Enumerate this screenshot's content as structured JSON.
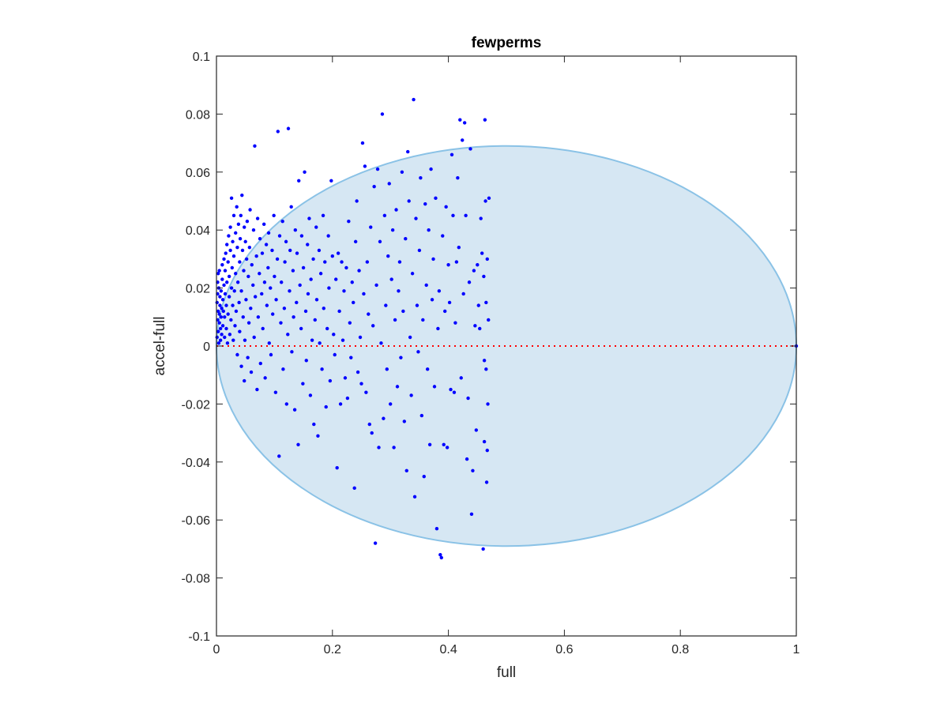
{
  "chart_data": {
    "type": "scatter",
    "title": "fewperms",
    "xlabel": "full",
    "ylabel": "accel-full",
    "xlim": [
      0,
      1
    ],
    "ylim": [
      -0.1,
      0.1
    ],
    "xticks": [
      0,
      0.2,
      0.4,
      0.6,
      0.8,
      1
    ],
    "xtick_labels": [
      "0",
      "0.2",
      "0.4",
      "0.6",
      "0.8",
      "1"
    ],
    "yticks": [
      -0.1,
      -0.08,
      -0.06,
      -0.04,
      -0.02,
      0,
      0.02,
      0.04,
      0.06,
      0.08,
      0.1
    ],
    "ytick_labels": [
      "-0.1",
      "-0.08",
      "-0.06",
      "-0.04",
      "-0.02",
      "0",
      "0.02",
      "0.04",
      "0.06",
      "0.08",
      "0.1"
    ],
    "grid": false,
    "reference_line": {
      "y": 0,
      "style": "dotted",
      "color": "#ff0000"
    },
    "region": {
      "shape": "ellipse",
      "passes_through": [
        [
          0,
          0
        ],
        [
          1,
          0
        ]
      ],
      "center": [
        0.5,
        0
      ],
      "x_semi_axis": 0.5,
      "y_semi_axis": 0.069,
      "fill": "#d6e7f3",
      "stroke": "#8ac2e6"
    },
    "marker_color": "#0000ff",
    "points": [
      [
        0.001,
        0.003
      ],
      [
        0.002,
        0.009
      ],
      [
        0.003,
        0.012
      ],
      [
        0.001,
        0.015
      ],
      [
        0.002,
        0.018
      ],
      [
        0.003,
        0.005
      ],
      [
        0.004,
        0.02
      ],
      [
        0.002,
        0.022
      ],
      [
        0.003,
        0.025
      ],
      [
        0.004,
        0.001
      ],
      [
        0.005,
        0.008
      ],
      [
        0.005,
        0.011
      ],
      [
        0.006,
        0.014
      ],
      [
        0.007,
        0.002
      ],
      [
        0.006,
        0.017
      ],
      [
        0.005,
        0.026
      ],
      [
        0.007,
        0.006
      ],
      [
        0.008,
        0.01
      ],
      [
        0.008,
        0.019
      ],
      [
        0.009,
        0.013
      ],
      [
        0.009,
        0.004
      ],
      [
        0.01,
        0.023
      ],
      [
        0.01,
        0.028
      ],
      [
        0.011,
        0.007
      ],
      [
        0.011,
        0.016
      ],
      [
        0.012,
        0.012
      ],
      [
        0.013,
        0.021
      ],
      [
        0.013,
        0.03
      ],
      [
        0.014,
        0.003
      ],
      [
        0.014,
        0.01
      ],
      [
        0.015,
        0.018
      ],
      [
        0.015,
        0.026
      ],
      [
        0.016,
        0.032
      ],
      [
        0.017,
        0.006
      ],
      [
        0.017,
        0.014
      ],
      [
        0.018,
        0.035
      ],
      [
        0.018,
        0.022
      ],
      [
        0.019,
        0.001
      ],
      [
        0.02,
        0.029
      ],
      [
        0.02,
        0.011
      ],
      [
        0.021,
        0.038
      ],
      [
        0.022,
        0.017
      ],
      [
        0.022,
        0.024
      ],
      [
        0.023,
        0.004
      ],
      [
        0.024,
        0.033
      ],
      [
        0.024,
        0.041
      ],
      [
        0.025,
        0.009
      ],
      [
        0.026,
        0.02
      ],
      [
        0.026,
        0.051
      ],
      [
        0.027,
        0.027
      ],
      [
        0.028,
        0.014
      ],
      [
        0.028,
        0.036
      ],
      [
        0.029,
        0.002
      ],
      [
        0.03,
        0.045
      ],
      [
        0.03,
        0.031
      ],
      [
        0.031,
        0.019
      ],
      [
        0.032,
        0.007
      ],
      [
        0.033,
        0.039
      ],
      [
        0.033,
        0.025
      ],
      [
        0.034,
        0.012
      ],
      [
        0.035,
        0.048
      ],
      [
        0.036,
        0.034
      ],
      [
        0.036,
        -0.003
      ],
      [
        0.037,
        0.022
      ],
      [
        0.038,
        0.042
      ],
      [
        0.039,
        0.015
      ],
      [
        0.04,
        0.029
      ],
      [
        0.04,
        0.005
      ],
      [
        0.041,
        0.037
      ],
      [
        0.042,
        0.045
      ],
      [
        0.043,
        -0.007
      ],
      [
        0.043,
        0.019
      ],
      [
        0.044,
        0.052
      ],
      [
        0.045,
        0.033
      ],
      [
        0.046,
        0.01
      ],
      [
        0.047,
        0.026
      ],
      [
        0.048,
        0.041
      ],
      [
        0.048,
        -0.012
      ],
      [
        0.049,
        0.002
      ],
      [
        0.05,
        0.036
      ],
      [
        0.051,
        0.016
      ],
      [
        0.052,
        0.03
      ],
      [
        0.053,
        0.043
      ],
      [
        0.054,
        -0.004
      ],
      [
        0.055,
        0.024
      ],
      [
        0.056,
        0.008
      ],
      [
        0.057,
        0.034
      ],
      [
        0.058,
        0.047
      ],
      [
        0.059,
        0.013
      ],
      [
        0.06,
        -0.009
      ],
      [
        0.061,
        0.028
      ],
      [
        0.063,
        0.021
      ],
      [
        0.064,
        0.04
      ],
      [
        0.065,
        0.003
      ],
      [
        0.066,
        0.069
      ],
      [
        0.067,
        0.017
      ],
      [
        0.069,
        0.031
      ],
      [
        0.07,
        -0.015
      ],
      [
        0.071,
        0.044
      ],
      [
        0.072,
        0.01
      ],
      [
        0.074,
        0.025
      ],
      [
        0.075,
        0.037
      ],
      [
        0.076,
        -0.006
      ],
      [
        0.078,
        0.018
      ],
      [
        0.079,
        0.032
      ],
      [
        0.08,
        0.006
      ],
      [
        0.082,
        0.042
      ],
      [
        0.083,
        0.022
      ],
      [
        0.084,
        -0.011
      ],
      [
        0.086,
        0.035
      ],
      [
        0.087,
        0.014
      ],
      [
        0.089,
        0.027
      ],
      [
        0.09,
        0.039
      ],
      [
        0.091,
        0.001
      ],
      [
        0.093,
        0.02
      ],
      [
        0.094,
        -0.003
      ],
      [
        0.096,
        0.033
      ],
      [
        0.097,
        0.011
      ],
      [
        0.099,
        0.045
      ],
      [
        0.1,
        0.024
      ],
      [
        0.102,
        -0.016
      ],
      [
        0.103,
        0.016
      ],
      [
        0.105,
        0.03
      ],
      [
        0.106,
        0.074
      ],
      [
        0.108,
        -0.038
      ],
      [
        0.109,
        0.038
      ],
      [
        0.111,
        0.008
      ],
      [
        0.112,
        0.022
      ],
      [
        0.114,
        0.043
      ],
      [
        0.115,
        -0.008
      ],
      [
        0.117,
        0.013
      ],
      [
        0.118,
        0.029
      ],
      [
        0.12,
        0.036
      ],
      [
        0.121,
        -0.02
      ],
      [
        0.123,
        0.004
      ],
      [
        0.124,
        0.075
      ],
      [
        0.126,
        0.019
      ],
      [
        0.127,
        0.033
      ],
      [
        0.129,
        0.048
      ],
      [
        0.13,
        -0.002
      ],
      [
        0.132,
        0.026
      ],
      [
        0.133,
        0.01
      ],
      [
        0.135,
        -0.022
      ],
      [
        0.136,
        0.04
      ],
      [
        0.138,
        0.015
      ],
      [
        0.139,
        0.032
      ],
      [
        0.141,
        -0.034
      ],
      [
        0.142,
        0.057
      ],
      [
        0.144,
        0.021
      ],
      [
        0.146,
        0.006
      ],
      [
        0.147,
        0.038
      ],
      [
        0.149,
        -0.013
      ],
      [
        0.15,
        0.027
      ],
      [
        0.152,
        0.06
      ],
      [
        0.154,
        0.012
      ],
      [
        0.155,
        -0.005
      ],
      [
        0.157,
        0.035
      ],
      [
        0.158,
        0.018
      ],
      [
        0.16,
        0.044
      ],
      [
        0.162,
        -0.017
      ],
      [
        0.163,
        0.023
      ],
      [
        0.165,
        0.002
      ],
      [
        0.167,
        0.03
      ],
      [
        0.168,
        -0.027
      ],
      [
        0.17,
        0.009
      ],
      [
        0.172,
        0.041
      ],
      [
        0.173,
        0.016
      ],
      [
        0.175,
        -0.031
      ],
      [
        0.177,
        0.033
      ],
      [
        0.178,
        0.001
      ],
      [
        0.18,
        0.025
      ],
      [
        0.182,
        -0.008
      ],
      [
        0.184,
        0.045
      ],
      [
        0.185,
        0.013
      ],
      [
        0.187,
        0.029
      ],
      [
        0.189,
        -0.021
      ],
      [
        0.191,
        0.006
      ],
      [
        0.193,
        0.038
      ],
      [
        0.194,
        0.02
      ],
      [
        0.196,
        -0.012
      ],
      [
        0.198,
        0.057
      ],
      [
        0.2,
        0.031
      ],
      [
        0.202,
        0.004
      ],
      [
        0.204,
        -0.003
      ],
      [
        0.206,
        0.023
      ],
      [
        0.208,
        -0.042
      ],
      [
        0.21,
        0.032
      ],
      [
        0.212,
        0.012
      ],
      [
        0.214,
        -0.02
      ],
      [
        0.216,
        0.029
      ],
      [
        0.218,
        0.002
      ],
      [
        0.22,
        0.019
      ],
      [
        0.222,
        -0.011
      ],
      [
        0.224,
        0.027
      ],
      [
        0.226,
        -0.018
      ],
      [
        0.228,
        0.043
      ],
      [
        0.23,
        0.008
      ],
      [
        0.232,
        -0.004
      ],
      [
        0.234,
        0.022
      ],
      [
        0.236,
        0.015
      ],
      [
        0.238,
        -0.049
      ],
      [
        0.24,
        0.036
      ],
      [
        0.242,
        0.05
      ],
      [
        0.244,
        -0.009
      ],
      [
        0.246,
        0.026
      ],
      [
        0.248,
        0.003
      ],
      [
        0.25,
        -0.013
      ],
      [
        0.252,
        0.07
      ],
      [
        0.254,
        0.018
      ],
      [
        0.256,
        0.062
      ],
      [
        0.258,
        -0.016
      ],
      [
        0.26,
        0.029
      ],
      [
        0.262,
        0.011
      ],
      [
        0.264,
        -0.027
      ],
      [
        0.266,
        0.041
      ],
      [
        0.268,
        -0.03
      ],
      [
        0.27,
        0.007
      ],
      [
        0.272,
        0.055
      ],
      [
        0.274,
        -0.068
      ],
      [
        0.276,
        0.021
      ],
      [
        0.278,
        0.061
      ],
      [
        0.28,
        -0.035
      ],
      [
        0.282,
        0.036
      ],
      [
        0.284,
        0.001
      ],
      [
        0.286,
        0.08
      ],
      [
        0.288,
        -0.025
      ],
      [
        0.29,
        0.045
      ],
      [
        0.292,
        0.014
      ],
      [
        0.294,
        -0.008
      ],
      [
        0.296,
        0.031
      ],
      [
        0.298,
        0.056
      ],
      [
        0.3,
        -0.02
      ],
      [
        0.302,
        0.023
      ],
      [
        0.304,
        0.04
      ],
      [
        0.306,
        -0.035
      ],
      [
        0.308,
        0.009
      ],
      [
        0.31,
        0.047
      ],
      [
        0.312,
        -0.014
      ],
      [
        0.314,
        0.019
      ],
      [
        0.316,
        0.029
      ],
      [
        0.318,
        -0.004
      ],
      [
        0.32,
        0.06
      ],
      [
        0.322,
        0.012
      ],
      [
        0.324,
        -0.026
      ],
      [
        0.326,
        0.037
      ],
      [
        0.328,
        -0.043
      ],
      [
        0.33,
        0.067
      ],
      [
        0.332,
        0.05
      ],
      [
        0.334,
        0.003
      ],
      [
        0.336,
        -0.017
      ],
      [
        0.338,
        0.025
      ],
      [
        0.34,
        0.085
      ],
      [
        0.342,
        -0.052
      ],
      [
        0.344,
        0.044
      ],
      [
        0.346,
        0.014
      ],
      [
        0.348,
        -0.002
      ],
      [
        0.35,
        0.033
      ],
      [
        0.352,
        0.058
      ],
      [
        0.354,
        -0.024
      ],
      [
        0.356,
        0.009
      ],
      [
        0.358,
        -0.045
      ],
      [
        0.36,
        0.049
      ],
      [
        0.362,
        0.021
      ],
      [
        0.364,
        -0.008
      ],
      [
        0.366,
        0.04
      ],
      [
        0.368,
        -0.034
      ],
      [
        0.37,
        0.061
      ],
      [
        0.372,
        0.016
      ],
      [
        0.374,
        0.03
      ],
      [
        0.376,
        -0.014
      ],
      [
        0.378,
        0.051
      ],
      [
        0.38,
        -0.063
      ],
      [
        0.382,
        0.006
      ],
      [
        0.384,
        0.019
      ],
      [
        0.386,
        -0.072
      ],
      [
        0.388,
        -0.073
      ],
      [
        0.39,
        0.038
      ],
      [
        0.392,
        -0.034
      ],
      [
        0.394,
        0.012
      ],
      [
        0.396,
        0.048
      ],
      [
        0.398,
        -0.035
      ],
      [
        0.4,
        0.028
      ],
      [
        0.402,
        0.015
      ],
      [
        0.404,
        -0.015
      ],
      [
        0.406,
        0.066
      ],
      [
        0.408,
        0.045
      ],
      [
        0.41,
        -0.016
      ],
      [
        0.412,
        0.008
      ],
      [
        0.414,
        0.029
      ],
      [
        0.416,
        0.058
      ],
      [
        0.418,
        0.034
      ],
      [
        0.42,
        0.078
      ],
      [
        0.422,
        -0.011
      ],
      [
        0.424,
        0.071
      ],
      [
        0.426,
        0.018
      ],
      [
        0.428,
        0.077
      ],
      [
        0.43,
        0.045
      ],
      [
        0.432,
        -0.039
      ],
      [
        0.434,
        -0.018
      ],
      [
        0.436,
        0.022
      ],
      [
        0.438,
        0.068
      ],
      [
        0.44,
        -0.058
      ],
      [
        0.442,
        -0.043
      ],
      [
        0.444,
        0.026
      ],
      [
        0.446,
        0.007
      ],
      [
        0.448,
        -0.029
      ],
      [
        0.45,
        0.028
      ],
      [
        0.452,
        0.014
      ],
      [
        0.454,
        0.006
      ],
      [
        0.456,
        0.044
      ],
      [
        0.458,
        0.032
      ],
      [
        0.46,
        -0.07
      ],
      [
        0.461,
        0.024
      ],
      [
        0.462,
        -0.005
      ],
      [
        0.462,
        -0.033
      ],
      [
        0.463,
        0.078
      ],
      [
        0.464,
        0.05
      ],
      [
        0.465,
        -0.008
      ],
      [
        0.465,
        0.015
      ],
      [
        0.466,
        -0.047
      ],
      [
        0.467,
        -0.036
      ],
      [
        0.467,
        0.03
      ],
      [
        0.468,
        -0.02
      ],
      [
        0.469,
        0.009
      ],
      [
        0.47,
        0.051
      ],
      [
        1.0,
        0.0
      ]
    ]
  }
}
